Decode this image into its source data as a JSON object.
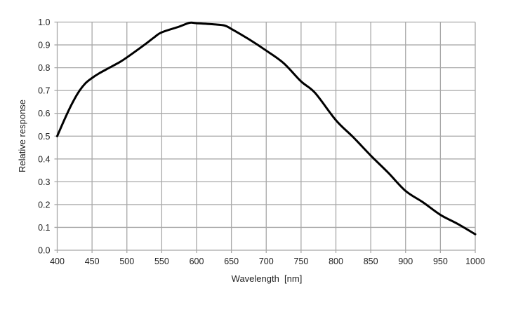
{
  "chart_data": {
    "type": "line",
    "title": "",
    "xlabel": "Wavelength  [nm]",
    "ylabel": "Relative response",
    "xlim": [
      400,
      1000
    ],
    "ylim": [
      0,
      1.0
    ],
    "grid": true,
    "x_ticks": [
      "400",
      "450",
      "500",
      "550",
      "600",
      "650",
      "700",
      "750",
      "800",
      "850",
      "900",
      "950",
      "1000"
    ],
    "y_ticks": [
      "0.0",
      "0.1",
      "0.2",
      "0.3",
      "0.4",
      "0.5",
      "0.6",
      "0.7",
      "0.8",
      "0.9",
      "1.0"
    ],
    "series": [
      {
        "name": "Relative response",
        "color": "#000000",
        "x": [
          400,
          410,
          420,
          430,
          440,
          450,
          460,
          475,
          490,
          500,
          525,
          540,
          550,
          575,
          590,
          600,
          625,
          640,
          650,
          675,
          700,
          725,
          750,
          770,
          800,
          825,
          850,
          875,
          900,
          925,
          950,
          975,
          1000
        ],
        "y": [
          0.5,
          0.57,
          0.635,
          0.69,
          0.73,
          0.755,
          0.775,
          0.8,
          0.825,
          0.845,
          0.9,
          0.935,
          0.955,
          0.98,
          0.997,
          0.995,
          0.99,
          0.985,
          0.97,
          0.925,
          0.875,
          0.82,
          0.74,
          0.69,
          0.57,
          0.495,
          0.415,
          0.34,
          0.26,
          0.21,
          0.155,
          0.115,
          0.07
        ]
      }
    ]
  }
}
